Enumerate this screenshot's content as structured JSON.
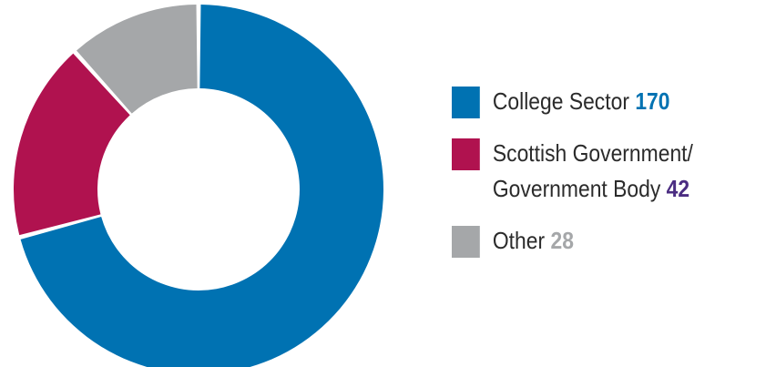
{
  "chart_data": {
    "type": "pie",
    "style": "donut",
    "categories": [
      "College Sector",
      "Scottish Government/ Government Body",
      "Other"
    ],
    "values": [
      170,
      42,
      28
    ],
    "colors": [
      "#0072B2",
      "#B0124F",
      "#A5A7A9"
    ],
    "value_label_colors": [
      "#0072B2",
      "#4B2D82",
      "#A5A7A9"
    ],
    "legend": "right",
    "legend_items": [
      {
        "label_lines": [
          "College Sector"
        ],
        "value": "170"
      },
      {
        "label_lines": [
          "Scottish Government/",
          "Government Body"
        ],
        "value": "42"
      },
      {
        "label_lines": [
          "Other"
        ],
        "value": "28"
      }
    ]
  }
}
